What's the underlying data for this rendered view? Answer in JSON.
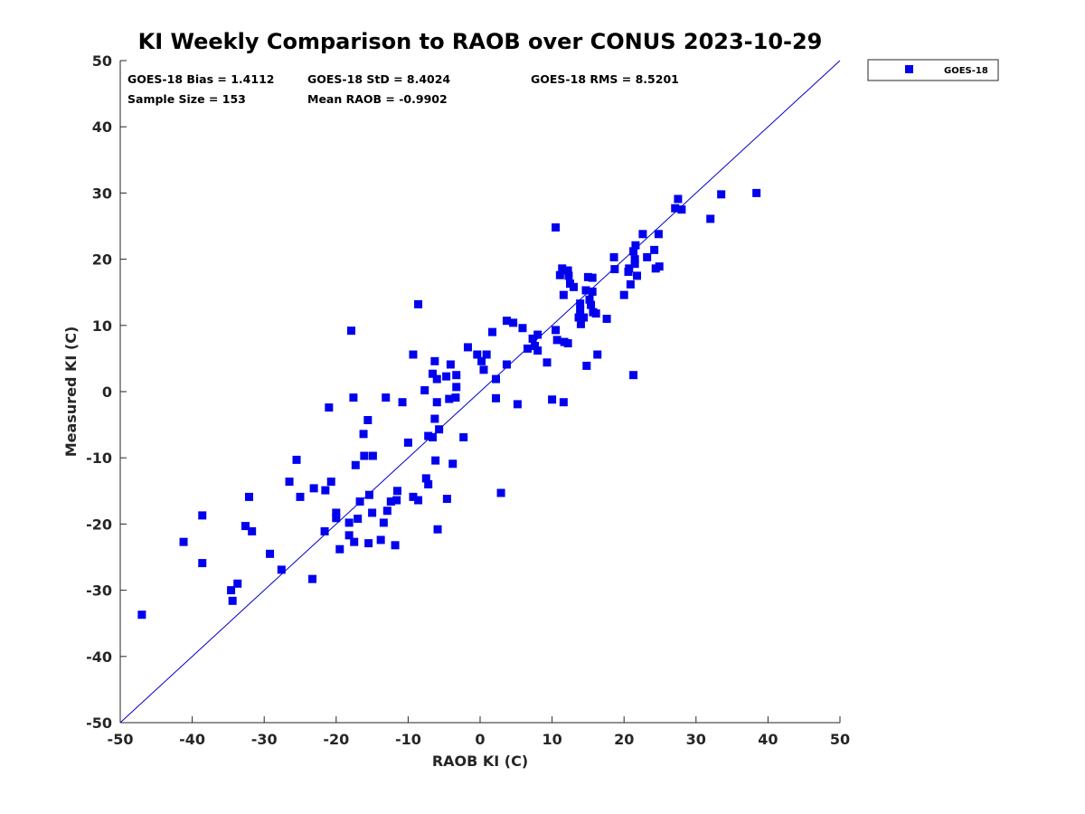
{
  "chart_data": {
    "type": "scatter",
    "title": "KI Weekly Comparison to RAOB over CONUS 2023-10-29",
    "xlabel": "RAOB KI (C)",
    "ylabel": "Measured KI (C)",
    "xlim": [
      -50,
      50
    ],
    "ylim": [
      -50,
      50
    ],
    "xticks": [
      "-50",
      "-40",
      "-30",
      "-20",
      "-10",
      "0",
      "10",
      "20",
      "30",
      "40",
      "50"
    ],
    "yticks": [
      "-50",
      "-40",
      "-30",
      "-20",
      "-10",
      "0",
      "10",
      "20",
      "30",
      "40",
      "50"
    ],
    "grid": false,
    "legend_position": "top-right outside",
    "reference_line": {
      "type": "1:1",
      "color": "#0000cc"
    },
    "stats": {
      "bias": "GOES-18 Bias = 1.4112",
      "std": "GOES-18 StD = 8.4024",
      "rms": "GOES-18 RMS = 8.5201",
      "sample": "Sample Size = 153",
      "mean": "Mean RAOB = -0.9902"
    },
    "series": [
      {
        "name": "GOES-18",
        "color": "#0000ee",
        "marker": "square",
        "points": [
          [
            -47.0,
            -33.7
          ],
          [
            -41.2,
            -22.7
          ],
          [
            -38.6,
            -18.7
          ],
          [
            -38.6,
            -25.9
          ],
          [
            -34.6,
            -30.0
          ],
          [
            -34.4,
            -31.6
          ],
          [
            -33.7,
            -29.0
          ],
          [
            -32.6,
            -20.3
          ],
          [
            -32.1,
            -15.9
          ],
          [
            -31.7,
            -21.1
          ],
          [
            -29.2,
            -24.5
          ],
          [
            -27.6,
            -26.9
          ],
          [
            -26.5,
            -13.6
          ],
          [
            -25.5,
            -10.3
          ],
          [
            -25.0,
            -15.9
          ],
          [
            -23.3,
            -28.3
          ],
          [
            -23.1,
            -14.6
          ],
          [
            -21.5,
            -14.9
          ],
          [
            -21.6,
            -21.1
          ],
          [
            -21.0,
            -2.4
          ],
          [
            -20.7,
            -13.6
          ],
          [
            -20.0,
            -18.3
          ],
          [
            -20.0,
            -19.1
          ],
          [
            -19.5,
            -23.8
          ],
          [
            -18.2,
            -19.8
          ],
          [
            -18.2,
            -21.7
          ],
          [
            -17.9,
            9.2
          ],
          [
            -17.6,
            -0.9
          ],
          [
            -17.5,
            -22.7
          ],
          [
            -17.3,
            -11.1
          ],
          [
            -17.0,
            -19.2
          ],
          [
            -16.7,
            -16.6
          ],
          [
            -16.2,
            -6.4
          ],
          [
            -16.1,
            -9.7
          ],
          [
            -15.6,
            -4.3
          ],
          [
            -15.5,
            -22.9
          ],
          [
            -15.4,
            -15.6
          ],
          [
            -15.0,
            -18.3
          ],
          [
            -14.9,
            -9.7
          ],
          [
            -13.8,
            -22.4
          ],
          [
            -13.4,
            -19.8
          ],
          [
            -13.1,
            -0.9
          ],
          [
            -12.9,
            -18.0
          ],
          [
            -12.4,
            -16.6
          ],
          [
            -11.8,
            -23.2
          ],
          [
            -11.6,
            -16.4
          ],
          [
            -11.5,
            -15.0
          ],
          [
            -10.8,
            -1.6
          ],
          [
            -10.0,
            -7.7
          ],
          [
            -9.3,
            5.6
          ],
          [
            -9.3,
            -15.9
          ],
          [
            -8.6,
            13.2
          ],
          [
            -8.6,
            -16.4
          ],
          [
            -7.7,
            0.2
          ],
          [
            -7.5,
            -13.1
          ],
          [
            -7.2,
            -14.0
          ],
          [
            -7.2,
            -6.7
          ],
          [
            -6.6,
            2.7
          ],
          [
            -6.6,
            -6.9
          ],
          [
            -6.3,
            4.6
          ],
          [
            -6.3,
            -4.1
          ],
          [
            -6.2,
            -10.4
          ],
          [
            -6.0,
            -1.6
          ],
          [
            -6.0,
            1.9
          ],
          [
            -5.9,
            -20.8
          ],
          [
            -5.7,
            -5.7
          ],
          [
            -4.7,
            2.3
          ],
          [
            -4.6,
            -16.2
          ],
          [
            -4.3,
            -1.1
          ],
          [
            -4.1,
            4.1
          ],
          [
            -3.8,
            -10.9
          ],
          [
            -3.4,
            -0.9
          ],
          [
            -3.3,
            0.7
          ],
          [
            -3.3,
            2.5
          ],
          [
            -2.3,
            -6.9
          ],
          [
            -1.7,
            6.7
          ],
          [
            -0.4,
            5.6
          ],
          [
            0.2,
            4.6
          ],
          [
            0.5,
            3.3
          ],
          [
            0.9,
            5.6
          ],
          [
            1.7,
            9.0
          ],
          [
            2.2,
            -1.0
          ],
          [
            2.2,
            1.9
          ],
          [
            2.9,
            -15.3
          ],
          [
            3.7,
            10.7
          ],
          [
            3.7,
            4.1
          ],
          [
            4.6,
            10.4
          ],
          [
            5.2,
            -1.9
          ],
          [
            5.9,
            9.6
          ],
          [
            6.6,
            6.5
          ],
          [
            7.3,
            8.0
          ],
          [
            7.6,
            6.9
          ],
          [
            8.0,
            8.6
          ],
          [
            8.0,
            6.2
          ],
          [
            9.3,
            4.4
          ],
          [
            10.0,
            -1.2
          ],
          [
            10.5,
            9.3
          ],
          [
            10.5,
            24.8
          ],
          [
            10.7,
            7.8
          ],
          [
            11.1,
            17.6
          ],
          [
            11.4,
            18.6
          ],
          [
            11.6,
            -1.6
          ],
          [
            11.6,
            14.6
          ],
          [
            11.7,
            7.5
          ],
          [
            12.2,
            7.3
          ],
          [
            12.2,
            18.3
          ],
          [
            12.3,
            17.5
          ],
          [
            12.5,
            16.3
          ],
          [
            13.0,
            15.8
          ],
          [
            13.7,
            11.2
          ],
          [
            13.9,
            12.3
          ],
          [
            13.9,
            13.3
          ],
          [
            14.0,
            10.2
          ],
          [
            14.4,
            11.2
          ],
          [
            14.7,
            15.3
          ],
          [
            14.8,
            3.9
          ],
          [
            15.0,
            17.3
          ],
          [
            15.2,
            13.9
          ],
          [
            15.4,
            13.1
          ],
          [
            15.6,
            15.1
          ],
          [
            15.6,
            17.2
          ],
          [
            15.7,
            12.0
          ],
          [
            16.1,
            11.8
          ],
          [
            16.3,
            5.6
          ],
          [
            17.6,
            11.0
          ],
          [
            18.6,
            20.3
          ],
          [
            18.7,
            18.5
          ],
          [
            20.0,
            14.6
          ],
          [
            20.6,
            18.1
          ],
          [
            20.7,
            18.6
          ],
          [
            20.9,
            16.2
          ],
          [
            21.3,
            2.5
          ],
          [
            21.3,
            21.2
          ],
          [
            21.5,
            20.0
          ],
          [
            21.5,
            19.3
          ],
          [
            21.6,
            22.1
          ],
          [
            21.8,
            17.5
          ],
          [
            22.6,
            23.8
          ],
          [
            23.2,
            20.3
          ],
          [
            24.2,
            21.4
          ],
          [
            24.4,
            18.6
          ],
          [
            24.8,
            23.8
          ],
          [
            24.9,
            18.9
          ],
          [
            27.1,
            27.7
          ],
          [
            27.5,
            29.1
          ],
          [
            28.0,
            27.5
          ],
          [
            32.0,
            26.1
          ],
          [
            33.5,
            29.8
          ],
          [
            38.4,
            30.0
          ]
        ]
      }
    ]
  }
}
